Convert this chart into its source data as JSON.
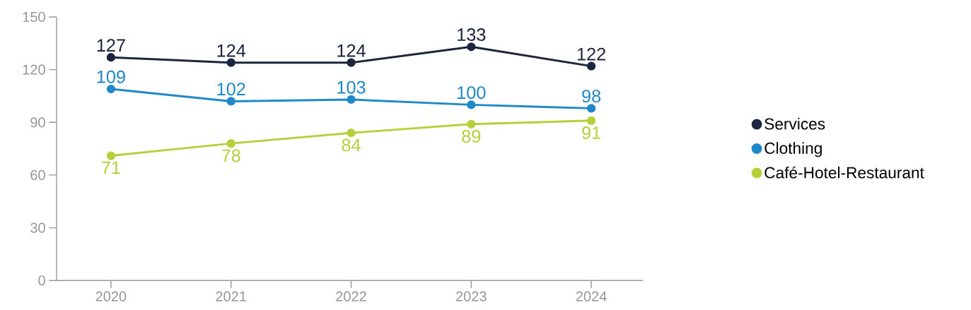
{
  "chart_data": {
    "type": "line",
    "categories": [
      "2020",
      "2021",
      "2022",
      "2023",
      "2024"
    ],
    "series": [
      {
        "name": "Services",
        "color": "#1b2540",
        "values": [
          127,
          124,
          124,
          133,
          122
        ]
      },
      {
        "name": "Clothing",
        "color": "#1f88c9",
        "values": [
          109,
          102,
          103,
          100,
          98
        ]
      },
      {
        "name": "Café-Hotel-Restaurant",
        "color": "#b6cf3b",
        "values": [
          71,
          78,
          84,
          89,
          91
        ]
      }
    ],
    "ylim": [
      0,
      150
    ],
    "yticks": [
      0,
      30,
      60,
      90,
      120,
      150
    ],
    "grid": false,
    "legend": "right",
    "marker": "circle",
    "line_style": "solid",
    "data_labels": true
  }
}
